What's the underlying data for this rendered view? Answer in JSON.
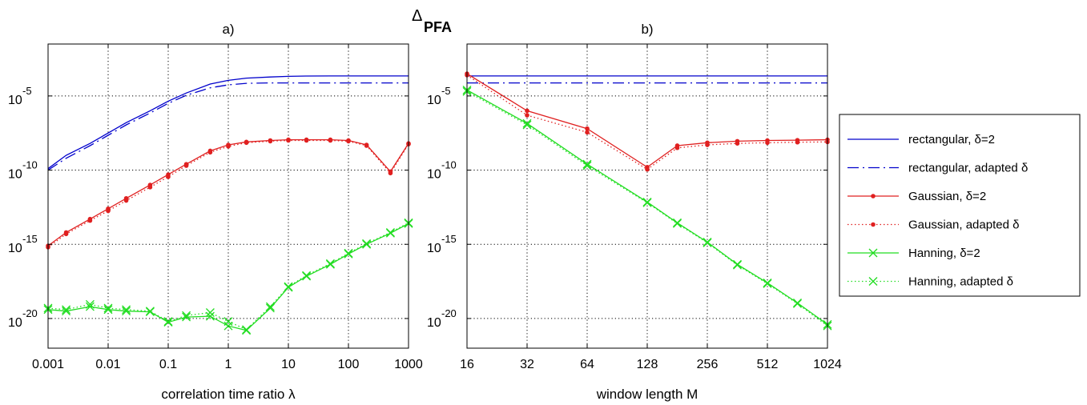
{
  "figure": {
    "center_title": {
      "symbol": "Δ",
      "subscript": "PFA"
    }
  },
  "legend": {
    "entries": [
      {
        "key": "rect_d2",
        "label": "rectangular, δ=2"
      },
      {
        "key": "rect_ad",
        "label": "rectangular, adapted δ"
      },
      {
        "key": "gauss_d2",
        "label": "Gaussian, δ=2"
      },
      {
        "key": "gauss_ad",
        "label": "Gaussian, adapted δ"
      },
      {
        "key": "hann_d2",
        "label": "Hanning, δ=2"
      },
      {
        "key": "hann_ad",
        "label": "Hanning, adapted δ"
      }
    ]
  },
  "colors": {
    "rectangular": "#0000cc",
    "gaussian": "#e02020",
    "hanning": "#22dd22",
    "grid": "#000000"
  },
  "chart_data": [
    {
      "type": "line",
      "title": "a)",
      "xlabel": "correlation time ratio λ",
      "ylabel": "",
      "xscale": "log",
      "yscale": "log-exponent",
      "xlim": [
        0.001,
        1000
      ],
      "ylim_exponent": [
        -22,
        -1.5
      ],
      "x_ticks": [
        "0.001",
        "0.01",
        "0.1",
        "1",
        "10",
        "100",
        "1000"
      ],
      "y_ticks": [
        {
          "base": "10",
          "exp": "-5"
        },
        {
          "base": "10",
          "exp": "-10"
        },
        {
          "base": "10",
          "exp": "-15"
        },
        {
          "base": "10",
          "exp": "-20"
        }
      ],
      "grid": true,
      "series": [
        {
          "key": "rect_d2",
          "marker": "none",
          "x": [
            0.001,
            0.002,
            0.005,
            0.01,
            0.02,
            0.05,
            0.1,
            0.2,
            0.5,
            1,
            2,
            5,
            10,
            20,
            50,
            100,
            200,
            500,
            1000
          ],
          "y_exponent": [
            -9.9,
            -9.0,
            -8.2,
            -7.5,
            -6.8,
            -6.0,
            -5.35,
            -4.8,
            -4.2,
            -3.95,
            -3.8,
            -3.72,
            -3.68,
            -3.66,
            -3.65,
            -3.65,
            -3.65,
            -3.65,
            -3.65
          ]
        },
        {
          "key": "rect_ad",
          "marker": "none",
          "x": [
            0.001,
            0.002,
            0.005,
            0.01,
            0.02,
            0.05,
            0.1,
            0.2,
            0.5,
            1,
            2,
            5,
            10,
            20,
            50,
            100,
            200,
            500,
            1000
          ],
          "y_exponent": [
            -10.0,
            -9.2,
            -8.35,
            -7.65,
            -6.95,
            -6.15,
            -5.5,
            -4.95,
            -4.45,
            -4.25,
            -4.15,
            -4.12,
            -4.12,
            -4.12,
            -4.12,
            -4.12,
            -4.12,
            -4.12,
            -4.12
          ]
        },
        {
          "key": "gauss_d2",
          "marker": "dot",
          "x": [
            0.001,
            0.002,
            0.005,
            0.01,
            0.02,
            0.05,
            0.1,
            0.2,
            0.5,
            1,
            2,
            5,
            10,
            20,
            50,
            100,
            200,
            500,
            1000
          ],
          "y_exponent": [
            -15.1,
            -14.2,
            -13.3,
            -12.6,
            -11.9,
            -11.0,
            -10.3,
            -9.6,
            -8.7,
            -8.3,
            -8.1,
            -8.0,
            -7.95,
            -7.95,
            -7.95,
            -8.0,
            -8.3,
            -10.1,
            -8.2
          ]
        },
        {
          "key": "gauss_ad",
          "marker": "dot",
          "x": [
            0.001,
            0.002,
            0.005,
            0.01,
            0.02,
            0.05,
            0.1,
            0.2,
            0.5,
            1,
            2,
            5,
            10,
            20,
            50,
            100,
            200,
            500,
            1000
          ],
          "y_exponent": [
            -15.2,
            -14.3,
            -13.4,
            -12.75,
            -12.05,
            -11.15,
            -10.45,
            -9.7,
            -8.8,
            -8.4,
            -8.15,
            -8.05,
            -8.0,
            -8.0,
            -8.0,
            -8.05,
            -8.35,
            -10.2,
            -8.25
          ]
        },
        {
          "key": "hann_d2",
          "marker": "x",
          "x": [
            0.001,
            0.002,
            0.005,
            0.01,
            0.02,
            0.05,
            0.1,
            0.2,
            0.5,
            1,
            2,
            5,
            10,
            20,
            50,
            100,
            200,
            500,
            1000
          ],
          "y_exponent": [
            -19.4,
            -19.5,
            -19.2,
            -19.4,
            -19.5,
            -19.55,
            -20.25,
            -19.9,
            -19.85,
            -20.5,
            -20.8,
            -19.3,
            -17.9,
            -17.15,
            -16.35,
            -15.65,
            -15.0,
            -14.25,
            -13.6
          ]
        },
        {
          "key": "hann_ad",
          "marker": "x",
          "x": [
            0.001,
            0.002,
            0.005,
            0.01,
            0.02,
            0.05,
            0.1,
            0.2,
            0.5,
            1,
            2,
            5,
            10,
            20,
            50,
            100,
            200,
            500,
            1000
          ],
          "y_exponent": [
            -19.3,
            -19.4,
            -19.05,
            -19.3,
            -19.4,
            -19.5,
            -20.2,
            -19.8,
            -19.6,
            -20.2,
            -20.75,
            -19.2,
            -17.85,
            -17.1,
            -16.3,
            -15.6,
            -14.95,
            -14.2,
            -13.55
          ]
        }
      ]
    },
    {
      "type": "line",
      "title": "b)",
      "xlabel": "window length M",
      "ylabel": "",
      "xscale": "log2",
      "yscale": "log-exponent",
      "xlim": [
        16,
        1024
      ],
      "ylim_exponent": [
        -22,
        -1.5
      ],
      "x_ticks": [
        "16",
        "32",
        "64",
        "128",
        "256",
        "512",
        "1024"
      ],
      "y_ticks": [
        {
          "base": "10",
          "exp": "-5"
        },
        {
          "base": "10",
          "exp": "-10"
        },
        {
          "base": "10",
          "exp": "-15"
        },
        {
          "base": "10",
          "exp": "-20"
        }
      ],
      "grid": true,
      "series": [
        {
          "key": "rect_d2",
          "marker": "none",
          "x": [
            16,
            1024
          ],
          "y_exponent": [
            -3.65,
            -3.65
          ]
        },
        {
          "key": "rect_ad",
          "marker": "none",
          "x": [
            16,
            1024
          ],
          "y_exponent": [
            -4.12,
            -4.12
          ]
        },
        {
          "key": "gauss_d2",
          "marker": "dot",
          "x": [
            16,
            32,
            64,
            128,
            181,
            256,
            362,
            512,
            724,
            1024
          ],
          "y_exponent": [
            -3.5,
            -6.0,
            -7.2,
            -9.8,
            -8.35,
            -8.15,
            -8.05,
            -8.0,
            -7.98,
            -7.95
          ]
        },
        {
          "key": "gauss_ad",
          "marker": "dot",
          "x": [
            16,
            32,
            64,
            128,
            181,
            256,
            362,
            512,
            724,
            1024
          ],
          "y_exponent": [
            -3.6,
            -6.3,
            -7.45,
            -9.95,
            -8.5,
            -8.3,
            -8.2,
            -8.15,
            -8.12,
            -8.1
          ]
        },
        {
          "key": "hann_d2",
          "marker": "x",
          "x": [
            16,
            32,
            64,
            128,
            181,
            256,
            362,
            512,
            724,
            1024
          ],
          "y_exponent": [
            -4.6,
            -6.85,
            -9.6,
            -12.15,
            -13.55,
            -14.85,
            -16.35,
            -17.6,
            -18.95,
            -20.4
          ]
        },
        {
          "key": "hann_ad",
          "marker": "x",
          "x": [
            16,
            32,
            64,
            128,
            181,
            256,
            362,
            512,
            724,
            1024
          ],
          "y_exponent": [
            -4.7,
            -6.95,
            -9.7,
            -12.2,
            -13.6,
            -14.9,
            -16.4,
            -17.65,
            -19.0,
            -20.5
          ]
        }
      ]
    }
  ]
}
